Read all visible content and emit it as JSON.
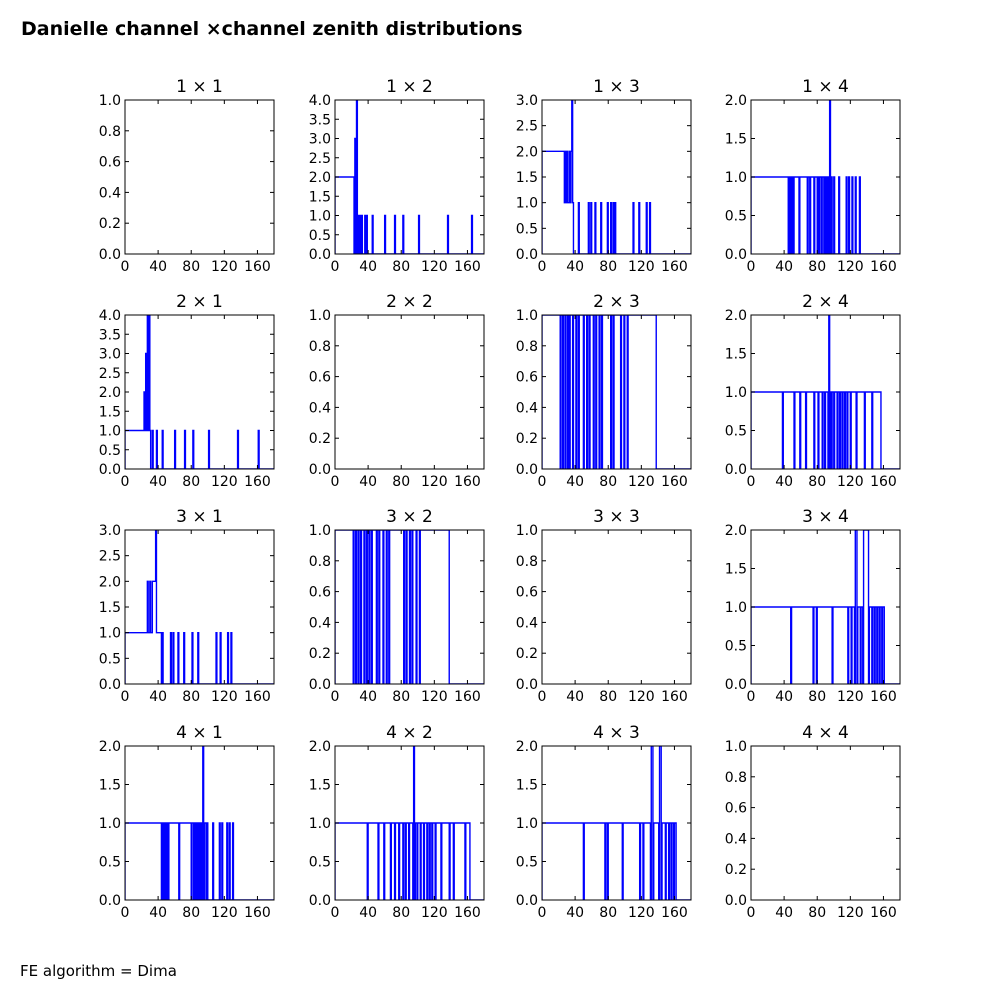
{
  "figure": {
    "title": "Danielle channel ×channel zenith distributions",
    "footnote": "FE algorithm = Dima"
  },
  "colors": {
    "line": "#0000ff",
    "axes": "#000000",
    "background": "#ffffff"
  },
  "chart_data": [
    {
      "type": "line",
      "drawstyle": "steps",
      "title": "1  × 1",
      "xlim": [
        0,
        180
      ],
      "ylim": [
        0,
        1
      ],
      "xticks": [
        "0",
        "40",
        "80",
        "120",
        "160"
      ],
      "yticks": [
        "0.0",
        "0.2",
        "0.4",
        "0.6",
        "0.8",
        "1.0"
      ],
      "x": [],
      "y": []
    },
    {
      "type": "line",
      "drawstyle": "steps",
      "title": "1  × 2",
      "xlim": [
        0,
        180
      ],
      "ylim": [
        0,
        4
      ],
      "xticks": [
        "0",
        "40",
        "80",
        "120",
        "160"
      ],
      "yticks": [
        "0.0",
        "0.5",
        "1.0",
        "1.5",
        "2.0",
        "2.5",
        "3.0",
        "3.5",
        "4.0"
      ],
      "x": [
        0,
        23,
        24,
        25,
        26,
        27,
        28,
        29,
        30,
        31,
        32,
        33,
        36,
        37,
        38,
        39,
        45,
        46,
        60,
        61,
        72,
        73,
        82,
        83,
        101,
        102,
        136,
        137,
        165,
        166,
        180
      ],
      "y": [
        0,
        2,
        0,
        3,
        0,
        4,
        0,
        1,
        0,
        1,
        0,
        1,
        0,
        1,
        0,
        1,
        0,
        1,
        0,
        1,
        0,
        1,
        0,
        1,
        0,
        1,
        0,
        1,
        0,
        1,
        0
      ]
    },
    {
      "type": "line",
      "drawstyle": "steps",
      "title": "1  × 3",
      "xlim": [
        0,
        180
      ],
      "ylim": [
        0,
        3
      ],
      "xticks": [
        "0",
        "40",
        "80",
        "120",
        "160"
      ],
      "yticks": [
        "0.0",
        "0.5",
        "1.0",
        "1.5",
        "2.0",
        "2.5",
        "3.0"
      ],
      "x": [
        0,
        27,
        28,
        29,
        30,
        31,
        33,
        34,
        35,
        36,
        37,
        38,
        44,
        45,
        56,
        57,
        59,
        60,
        64,
        65,
        71,
        72,
        79,
        80,
        83,
        84,
        86,
        87,
        88,
        89,
        110,
        111,
        117,
        118,
        126,
        127,
        130,
        131,
        180
      ],
      "y": [
        0,
        2,
        1,
        2,
        1,
        2,
        1,
        2,
        1,
        2,
        3,
        1,
        0,
        1,
        0,
        1,
        0,
        1,
        0,
        1,
        0,
        1,
        0,
        1,
        0,
        1,
        0,
        1,
        0,
        1,
        0,
        1,
        0,
        1,
        0,
        1,
        0,
        1,
        0
      ]
    },
    {
      "type": "line",
      "drawstyle": "steps",
      "title": "1  × 4",
      "xlim": [
        0,
        180
      ],
      "ylim": [
        0,
        2
      ],
      "xticks": [
        "0",
        "40",
        "80",
        "120",
        "160"
      ],
      "yticks": [
        "0.0",
        "0.5",
        "1.0",
        "1.5",
        "2.0"
      ],
      "x": [
        0,
        45,
        46,
        47,
        48,
        49,
        50,
        51,
        52,
        58,
        59,
        68,
        69,
        71,
        72,
        76,
        77,
        80,
        81,
        82,
        83,
        85,
        86,
        88,
        89,
        90,
        91,
        92,
        93,
        94,
        95,
        96,
        97,
        98,
        100,
        101,
        106,
        107,
        115,
        116,
        118,
        119,
        122,
        123,
        126,
        127,
        131,
        132,
        180
      ],
      "y": [
        0,
        1,
        0,
        1,
        0,
        1,
        0,
        1,
        0,
        1,
        0,
        1,
        0,
        1,
        0,
        1,
        0,
        1,
        0,
        1,
        0,
        1,
        0,
        1,
        0,
        1,
        0,
        1,
        0,
        1,
        0,
        2,
        0,
        1,
        0,
        1,
        0,
        1,
        0,
        1,
        0,
        1,
        0,
        1,
        0,
        1,
        0,
        1,
        0
      ]
    },
    {
      "type": "line",
      "drawstyle": "steps",
      "title": "2  × 1",
      "xlim": [
        0,
        180
      ],
      "ylim": [
        0,
        4
      ],
      "xticks": [
        "0",
        "40",
        "80",
        "120",
        "160"
      ],
      "yticks": [
        "0.0",
        "0.5",
        "1.0",
        "1.5",
        "2.0",
        "2.5",
        "3.0",
        "3.5",
        "4.0"
      ],
      "x": [
        0,
        23,
        24,
        25,
        26,
        27,
        28,
        29,
        30,
        31,
        33,
        34,
        38,
        39,
        45,
        46,
        60,
        61,
        72,
        73,
        82,
        83,
        101,
        102,
        136,
        137,
        161,
        162,
        180
      ],
      "y": [
        0,
        1,
        2,
        1,
        3,
        1,
        4,
        1,
        4,
        1,
        0,
        1,
        0,
        1,
        0,
        1,
        0,
        1,
        0,
        1,
        0,
        1,
        0,
        1,
        0,
        1,
        0,
        1,
        0
      ]
    },
    {
      "type": "line",
      "drawstyle": "steps",
      "title": "2  × 2",
      "xlim": [
        0,
        180
      ],
      "ylim": [
        0,
        1
      ],
      "xticks": [
        "0",
        "40",
        "80",
        "120",
        "160"
      ],
      "yticks": [
        "0.0",
        "0.2",
        "0.4",
        "0.6",
        "0.8",
        "1.0"
      ],
      "x": [],
      "y": []
    },
    {
      "type": "line",
      "drawstyle": "steps",
      "title": "2  × 3",
      "xlim": [
        0,
        180
      ],
      "ylim": [
        0,
        1
      ],
      "xticks": [
        "0",
        "40",
        "80",
        "120",
        "160"
      ],
      "yticks": [
        "0.0",
        "0.2",
        "0.4",
        "0.6",
        "0.8",
        "1.0"
      ],
      "x": [
        0,
        22,
        23,
        25,
        26,
        28,
        29,
        31,
        32,
        33,
        34,
        37,
        38,
        41,
        42,
        44,
        45,
        50,
        51,
        54,
        55,
        57,
        58,
        62,
        63,
        65,
        66,
        69,
        70,
        72,
        73,
        83,
        84,
        86,
        87,
        95,
        96,
        99,
        100,
        103,
        104,
        138,
        139,
        180
      ],
      "y": [
        0,
        1,
        0,
        1,
        0,
        1,
        0,
        1,
        0,
        1,
        0,
        1,
        0,
        1,
        0,
        1,
        0,
        1,
        0,
        1,
        0,
        1,
        0,
        1,
        0,
        1,
        0,
        1,
        0,
        1,
        0,
        1,
        0,
        1,
        0,
        1,
        0,
        1,
        0,
        1,
        0,
        1,
        0,
        0
      ]
    },
    {
      "type": "line",
      "drawstyle": "steps",
      "title": "2  × 4",
      "xlim": [
        0,
        180
      ],
      "ylim": [
        0,
        2
      ],
      "xticks": [
        "0",
        "40",
        "80",
        "120",
        "160"
      ],
      "yticks": [
        "0.0",
        "0.5",
        "1.0",
        "1.5",
        "2.0"
      ],
      "x": [
        0,
        38,
        39,
        52,
        53,
        59,
        60,
        66,
        67,
        76,
        77,
        81,
        82,
        86,
        87,
        89,
        90,
        93,
        94,
        95,
        96,
        97,
        98,
        100,
        101,
        104,
        105,
        107,
        108,
        110,
        111,
        113,
        114,
        116,
        117,
        120,
        121,
        127,
        128,
        137,
        138,
        146,
        147,
        157,
        158,
        180
      ],
      "y": [
        0,
        1,
        0,
        1,
        0,
        1,
        0,
        1,
        0,
        1,
        0,
        1,
        0,
        1,
        0,
        1,
        0,
        1,
        0,
        2,
        0,
        1,
        0,
        1,
        0,
        1,
        0,
        1,
        0,
        1,
        0,
        1,
        0,
        1,
        0,
        1,
        0,
        1,
        0,
        1,
        0,
        1,
        0,
        1,
        0,
        0
      ]
    },
    {
      "type": "line",
      "drawstyle": "steps",
      "title": "3  × 1",
      "xlim": [
        0,
        180
      ],
      "ylim": [
        0,
        3
      ],
      "xticks": [
        "0",
        "40",
        "80",
        "120",
        "160"
      ],
      "yticks": [
        "0.0",
        "0.5",
        "1.0",
        "1.5",
        "2.0",
        "2.5",
        "3.0"
      ],
      "x": [
        0,
        27,
        28,
        30,
        31,
        32,
        33,
        37,
        38,
        40,
        41,
        44,
        45,
        46,
        55,
        56,
        58,
        59,
        64,
        65,
        71,
        72,
        81,
        82,
        88,
        89,
        110,
        111,
        115,
        116,
        124,
        125,
        128,
        129,
        180
      ],
      "y": [
        0,
        1,
        2,
        1,
        2,
        1,
        1,
        2,
        3,
        1,
        1,
        1,
        0,
        1,
        0,
        1,
        0,
        1,
        0,
        1,
        0,
        1,
        0,
        1,
        0,
        1,
        0,
        1,
        0,
        1,
        0,
        1,
        0,
        1,
        0
      ]
    },
    {
      "type": "line",
      "drawstyle": "steps",
      "title": "3  × 2",
      "xlim": [
        0,
        180
      ],
      "ylim": [
        0,
        1
      ],
      "xticks": [
        "0",
        "40",
        "80",
        "120",
        "160"
      ],
      "yticks": [
        "0.0",
        "0.2",
        "0.4",
        "0.6",
        "0.8",
        "1.0"
      ],
      "x": [
        0,
        22,
        23,
        25,
        26,
        28,
        29,
        31,
        32,
        35,
        36,
        38,
        39,
        41,
        42,
        44,
        45,
        50,
        51,
        53,
        54,
        58,
        59,
        62,
        63,
        65,
        66,
        83,
        84,
        86,
        87,
        90,
        91,
        93,
        94,
        98,
        99,
        102,
        103,
        138,
        139,
        180
      ],
      "y": [
        0,
        1,
        0,
        1,
        0,
        1,
        0,
        1,
        0,
        1,
        0,
        1,
        0,
        1,
        0,
        1,
        0,
        1,
        0,
        1,
        0,
        1,
        0,
        1,
        0,
        1,
        0,
        1,
        0,
        1,
        0,
        1,
        0,
        1,
        0,
        1,
        0,
        1,
        0,
        1,
        0,
        0
      ]
    },
    {
      "type": "line",
      "drawstyle": "steps",
      "title": "3  × 3",
      "xlim": [
        0,
        180
      ],
      "ylim": [
        0,
        1
      ],
      "xticks": [
        "0",
        "40",
        "80",
        "120",
        "160"
      ],
      "yticks": [
        "0.0",
        "0.2",
        "0.4",
        "0.6",
        "0.8",
        "1.0"
      ],
      "x": [],
      "y": []
    },
    {
      "type": "line",
      "drawstyle": "steps",
      "title": "3  × 4",
      "xlim": [
        0,
        180
      ],
      "ylim": [
        0,
        2
      ],
      "xticks": [
        "0",
        "40",
        "80",
        "120",
        "160"
      ],
      "yticks": [
        "0.0",
        "0.5",
        "1.0",
        "1.5",
        "2.0"
      ],
      "x": [
        0,
        48,
        49,
        75,
        76,
        79,
        80,
        98,
        99,
        117,
        118,
        121,
        122,
        125,
        126,
        128,
        129,
        132,
        133,
        135,
        136,
        142,
        143,
        146,
        147,
        149,
        150,
        152,
        153,
        155,
        156,
        158,
        159,
        161,
        162,
        180
      ],
      "y": [
        0,
        1,
        0,
        1,
        0,
        1,
        0,
        1,
        0,
        1,
        0,
        1,
        0,
        1,
        0,
        2,
        0,
        1,
        0,
        1,
        0,
        2,
        0,
        1,
        0,
        1,
        0,
        1,
        0,
        1,
        0,
        1,
        0,
        1,
        0,
        0
      ]
    },
    {
      "type": "line",
      "drawstyle": "steps",
      "title": "4  × 1",
      "xlim": [
        0,
        180
      ],
      "ylim": [
        0,
        2
      ],
      "xticks": [
        "0",
        "40",
        "80",
        "120",
        "160"
      ],
      "yticks": [
        "0.0",
        "0.5",
        "1.0",
        "1.5",
        "2.0"
      ],
      "x": [
        0,
        44,
        45,
        46,
        47,
        48,
        49,
        50,
        51,
        52,
        53,
        65,
        66,
        70,
        71,
        72,
        73,
        80,
        81,
        83,
        84,
        85,
        86,
        87,
        88,
        89,
        90,
        91,
        92,
        93,
        94,
        95,
        96,
        98,
        99,
        100,
        106,
        107,
        114,
        115,
        117,
        118,
        123,
        124,
        126,
        127,
        130,
        131,
        180
      ],
      "y": [
        0,
        1,
        0,
        1,
        0,
        1,
        0,
        1,
        0,
        1,
        0,
        1,
        0,
        1,
        1,
        1,
        1,
        1,
        0,
        1,
        0,
        1,
        0,
        1,
        0,
        1,
        0,
        1,
        0,
        1,
        0,
        2,
        0,
        1,
        0,
        1,
        0,
        1,
        0,
        1,
        0,
        1,
        0,
        1,
        0,
        1,
        0,
        1,
        0
      ]
    },
    {
      "type": "line",
      "drawstyle": "steps",
      "title": "4  × 2",
      "xlim": [
        0,
        180
      ],
      "ylim": [
        0,
        2
      ],
      "xticks": [
        "0",
        "40",
        "80",
        "120",
        "160"
      ],
      "yticks": [
        "0.0",
        "0.5",
        "1.0",
        "1.5",
        "2.0"
      ],
      "x": [
        0,
        39,
        40,
        52,
        53,
        59,
        60,
        67,
        68,
        72,
        73,
        77,
        78,
        82,
        83,
        85,
        86,
        89,
        90,
        94,
        95,
        96,
        97,
        99,
        100,
        103,
        104,
        107,
        108,
        111,
        112,
        114,
        115,
        117,
        118,
        121,
        122,
        128,
        129,
        138,
        139,
        143,
        144,
        157,
        158,
        163,
        164,
        180
      ],
      "y": [
        0,
        1,
        0,
        1,
        0,
        1,
        0,
        1,
        0,
        1,
        0,
        1,
        0,
        1,
        0,
        1,
        0,
        1,
        0,
        1,
        0,
        2,
        0,
        1,
        0,
        1,
        0,
        1,
        0,
        1,
        0,
        1,
        0,
        1,
        0,
        1,
        0,
        1,
        0,
        1,
        0,
        1,
        0,
        1,
        0,
        1,
        0,
        0
      ]
    },
    {
      "type": "line",
      "drawstyle": "steps",
      "title": "4  × 3",
      "xlim": [
        0,
        180
      ],
      "ylim": [
        0,
        2
      ],
      "xticks": [
        "0",
        "40",
        "80",
        "120",
        "160"
      ],
      "yticks": [
        "0.0",
        "0.5",
        "1.0",
        "1.5",
        "2.0"
      ],
      "x": [
        0,
        50,
        51,
        76,
        77,
        79,
        80,
        97,
        98,
        118,
        119,
        122,
        123,
        131,
        132,
        134,
        135,
        141,
        142,
        144,
        145,
        149,
        150,
        153,
        154,
        156,
        157,
        159,
        160,
        162,
        163,
        180
      ],
      "y": [
        0,
        1,
        0,
        1,
        0,
        1,
        0,
        1,
        0,
        1,
        0,
        1,
        0,
        1,
        0,
        2,
        0,
        1,
        0,
        2,
        0,
        1,
        0,
        1,
        0,
        1,
        0,
        1,
        0,
        1,
        0,
        0
      ]
    },
    {
      "type": "line",
      "drawstyle": "steps",
      "title": "4  × 4",
      "xlim": [
        0,
        180
      ],
      "ylim": [
        0,
        1
      ],
      "xticks": [
        "0",
        "40",
        "80",
        "120",
        "160"
      ],
      "yticks": [
        "0.0",
        "0.2",
        "0.4",
        "0.6",
        "0.8",
        "1.0"
      ],
      "x": [],
      "y": []
    }
  ]
}
